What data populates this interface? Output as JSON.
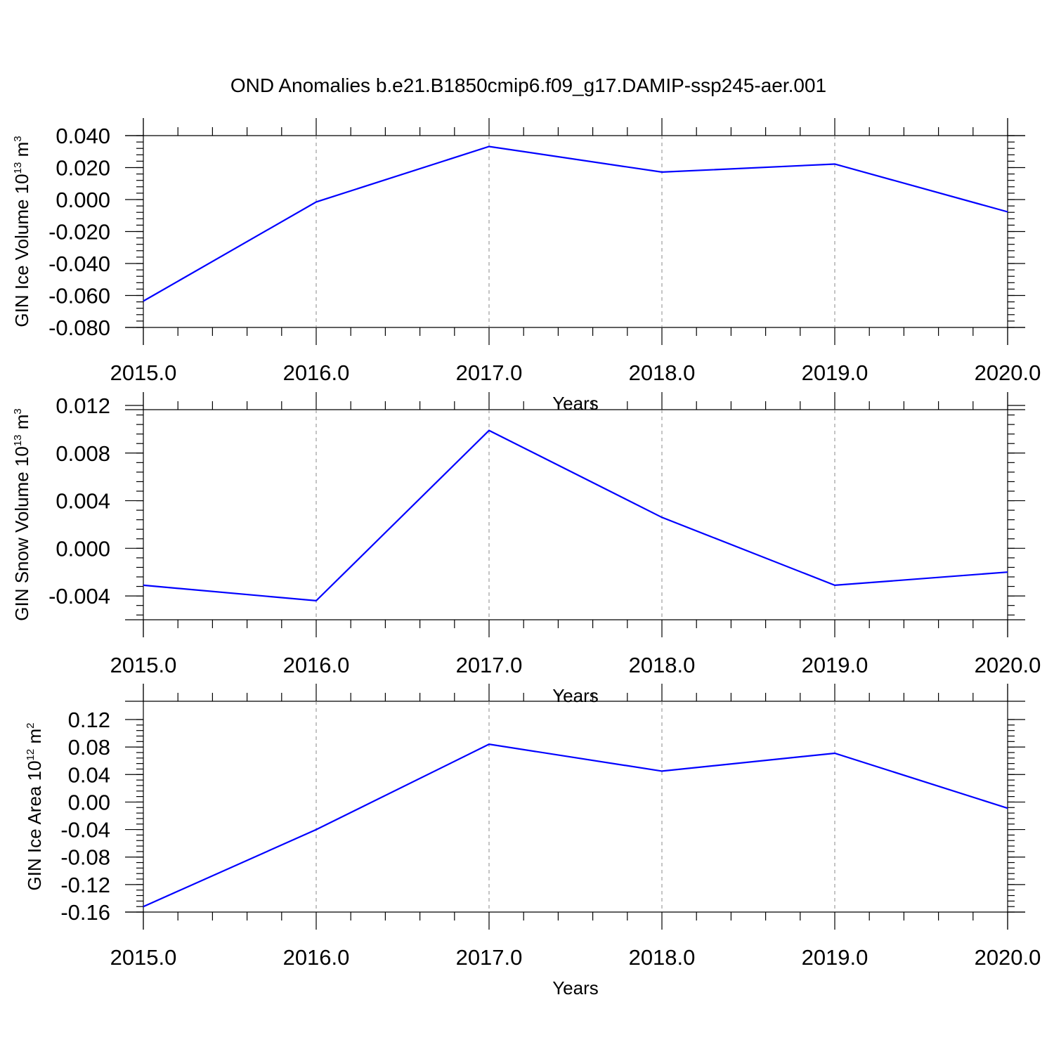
{
  "title": "OND Anomalies b.e21.B1850cmip6.f09_g17.DAMIP-ssp245-aer.001",
  "series_color": "#0000ff",
  "chart_data": [
    {
      "type": "line",
      "ylabel": "GIN Ice Volume 10",
      "ylabel_exp": "13",
      "ylabel_unit": " m",
      "ylabel_unit_exp": "3",
      "xlabel": "Years",
      "xlim": [
        2015.0,
        2020.0
      ],
      "ylim": [
        -0.08,
        0.04
      ],
      "x_ticks": [
        "2015.0",
        "2016.0",
        "2017.0",
        "2018.0",
        "2019.0",
        "2020.0"
      ],
      "y_ticks": [
        "0.040",
        "0.020",
        "0.000",
        "-0.020",
        "-0.040",
        "-0.060",
        "-0.080"
      ],
      "y_tick_values": [
        0.04,
        0.02,
        0.0,
        -0.02,
        -0.04,
        -0.06,
        -0.08
      ],
      "x": [
        2015,
        2016,
        2017,
        2018,
        2019,
        2020
      ],
      "y": [
        -0.0635,
        -0.0015,
        0.0332,
        0.0172,
        0.0222,
        -0.0077
      ],
      "grid": "vertical dashed at major x ticks"
    },
    {
      "type": "line",
      "ylabel": "GIN Snow Volume 10",
      "ylabel_exp": "13",
      "ylabel_unit": " m",
      "ylabel_unit_exp": "3",
      "xlabel": "Years",
      "xlim": [
        2015.0,
        2020.0
      ],
      "ylim": [
        -0.006,
        0.012
      ],
      "x_ticks": [
        "2015.0",
        "2016.0",
        "2017.0",
        "2018.0",
        "2019.0",
        "2020.0"
      ],
      "y_ticks": [
        "0.012",
        "0.008",
        "0.004",
        "0.000",
        "-0.004"
      ],
      "y_tick_values": [
        0.012,
        0.008,
        0.004,
        0.0,
        -0.004
      ],
      "x": [
        2015,
        2016,
        2017,
        2018,
        2019,
        2020
      ],
      "y": [
        -0.0031,
        -0.0044,
        0.0099,
        0.0026,
        -0.0031,
        -0.002
      ],
      "grid": "vertical dashed at major x ticks"
    },
    {
      "type": "line",
      "ylabel": "GIN Ice Area 10",
      "ylabel_exp": "12",
      "ylabel_unit": " m",
      "ylabel_unit_exp": "2",
      "xlabel": "Years",
      "xlim": [
        2015.0,
        2020.0
      ],
      "ylim": [
        -0.16,
        0.12
      ],
      "x_ticks": [
        "2015.0",
        "2016.0",
        "2017.0",
        "2018.0",
        "2019.0",
        "2020.0"
      ],
      "y_ticks": [
        "0.12",
        "0.08",
        "0.04",
        "0.00",
        "-0.04",
        "-0.08",
        "-0.12",
        "-0.16"
      ],
      "y_tick_values": [
        0.12,
        0.08,
        0.04,
        0.0,
        -0.04,
        -0.08,
        -0.12,
        -0.16
      ],
      "x": [
        2015,
        2016,
        2017,
        2018,
        2019,
        2020
      ],
      "y": [
        -0.152,
        -0.04,
        0.084,
        0.045,
        0.071,
        -0.009
      ],
      "grid": "vertical dashed at major x ticks"
    }
  ]
}
